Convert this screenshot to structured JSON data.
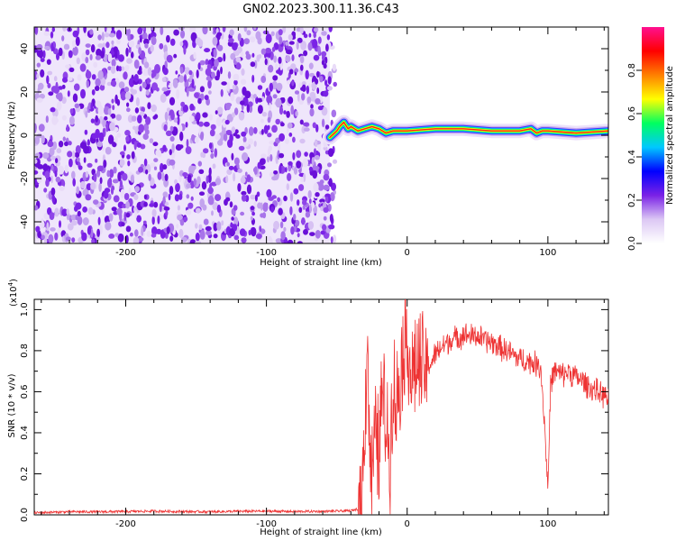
{
  "chart_data": [
    {
      "type": "heatmap",
      "title": "GN02.2023.300.11.36.C43",
      "xlabel": "Height of straight line (km)",
      "ylabel": "Frequency (Hz)",
      "xlim": [
        -265,
        143
      ],
      "ylim": [
        -50,
        50
      ],
      "xticks": [
        -200,
        -100,
        0,
        100
      ],
      "yticks": [
        -40,
        -20,
        0,
        20,
        40
      ],
      "noise_region_x": [
        -265,
        -55
      ],
      "signal_trace": {
        "x": [
          -55,
          -50,
          -48,
          -45,
          -42,
          -40,
          -35,
          -30,
          -25,
          -20,
          -15,
          -10,
          0,
          20,
          40,
          60,
          80,
          88,
          92,
          96,
          100,
          120,
          143
        ],
        "frequency": [
          -1,
          2,
          4,
          6,
          3,
          4,
          2,
          3,
          4,
          3,
          1,
          2,
          2,
          3,
          3,
          2,
          2,
          3,
          1,
          2,
          2,
          1,
          2
        ]
      },
      "colorbar": {
        "label": "Normalized spectral amplitude",
        "range": [
          0.0,
          1.0
        ],
        "ticks": [
          "0.0",
          "0.2",
          "0.4",
          "0.6",
          "0.8"
        ],
        "colors": [
          "#ffffff",
          "#dcc8f4",
          "#7a22e6",
          "#0000ff",
          "#00c8ff",
          "#00ff60",
          "#ffff00",
          "#ff8000",
          "#ff0000",
          "#ff1090"
        ]
      }
    },
    {
      "type": "line",
      "xlabel": "Height of straight line (km)",
      "ylabel": "SNR (10 * v/v)",
      "scale_label": "(x10",
      "scale_exp": "4",
      "scale_close": ")",
      "xlim": [
        -265,
        143
      ],
      "ylim": [
        0,
        1.05
      ],
      "xticks": [
        -200,
        -100,
        0,
        100
      ],
      "yticks": [
        "0.0",
        "0.2",
        "0.4",
        "0.6",
        "0.8",
        "1.0"
      ],
      "color": "#ee3333",
      "series": [
        {
          "x": [
            -265,
            -240,
            -220,
            -200,
            -180,
            -160,
            -140,
            -120,
            -100,
            -80,
            -60,
            -50,
            -40,
            -35,
            -32,
            -30,
            -28,
            -27,
            -25,
            -22,
            -20,
            -18,
            -15,
            -12,
            -10,
            -8,
            -5,
            -3,
            0,
            3,
            6,
            10,
            15,
            20,
            25,
            30,
            35,
            40,
            45,
            50,
            55,
            60,
            65,
            70,
            75,
            80,
            85,
            90,
            95,
            98,
            100,
            102,
            105,
            110,
            115,
            120,
            125,
            130,
            135,
            140,
            143
          ],
          "values": [
            0.01,
            0.015,
            0.015,
            0.016,
            0.018,
            0.016,
            0.015,
            0.017,
            0.018,
            0.016,
            0.017,
            0.018,
            0.02,
            0.03,
            0.08,
            0.5,
            0.92,
            0.35,
            0.2,
            0.4,
            0.28,
            0.6,
            0.45,
            0.3,
            0.7,
            0.5,
            0.7,
            0.8,
            0.9,
            0.65,
            0.75,
            0.7,
            0.72,
            0.78,
            0.82,
            0.85,
            0.86,
            0.88,
            0.87,
            0.87,
            0.85,
            0.84,
            0.82,
            0.8,
            0.78,
            0.76,
            0.75,
            0.74,
            0.72,
            0.4,
            0.12,
            0.65,
            0.7,
            0.68,
            0.7,
            0.67,
            0.65,
            0.62,
            0.6,
            0.58,
            0.56
          ]
        }
      ]
    }
  ]
}
